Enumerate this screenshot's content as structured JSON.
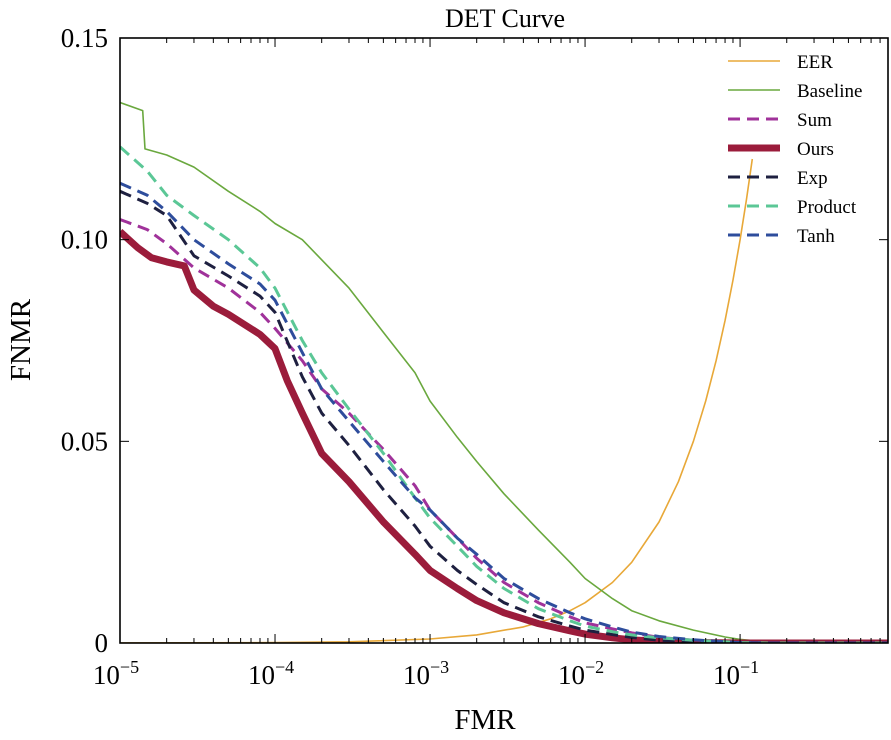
{
  "chart_data": {
    "type": "line",
    "title": "DET Curve",
    "xlabel": "FMR",
    "ylabel": "FNMR",
    "x_scale": "log",
    "xlim": [
      1e-05,
      0.9
    ],
    "ylim": [
      0,
      0.15
    ],
    "x_ticks": [
      {
        "value": 1e-05,
        "base": "10",
        "exp": "−5"
      },
      {
        "value": 0.0001,
        "base": "10",
        "exp": "−4"
      },
      {
        "value": 0.001,
        "base": "10",
        "exp": "−3"
      },
      {
        "value": 0.01,
        "base": "10",
        "exp": "−2"
      },
      {
        "value": 0.1,
        "base": "10",
        "exp": "−1"
      }
    ],
    "y_ticks": [
      {
        "value": 0,
        "label": "0"
      },
      {
        "value": 0.05,
        "label": "0.05"
      },
      {
        "value": 0.1,
        "label": "0.10"
      },
      {
        "value": 0.15,
        "label": "0.15"
      }
    ],
    "grid": false,
    "legend_position": "top-right",
    "series": [
      {
        "name": "EER",
        "color": "#e8a838",
        "style": "solid",
        "width": 1.6,
        "x": [
          1e-05,
          0.0001,
          0.0003,
          0.001,
          0.002,
          0.004,
          0.006,
          0.008,
          0.01,
          0.015,
          0.02,
          0.03,
          0.04,
          0.05,
          0.06,
          0.07,
          0.08,
          0.09,
          0.1,
          0.11,
          0.12
        ],
        "y": [
          1e-05,
          0.0001,
          0.0003,
          0.001,
          0.002,
          0.004,
          0.006,
          0.008,
          0.01,
          0.015,
          0.02,
          0.03,
          0.04,
          0.05,
          0.06,
          0.07,
          0.08,
          0.09,
          0.1,
          0.11,
          0.12
        ]
      },
      {
        "name": "Baseline",
        "color": "#6aa83e",
        "style": "solid",
        "width": 1.6,
        "x": [
          1e-05,
          1.4e-05,
          1.45e-05,
          2e-05,
          3e-05,
          5e-05,
          8e-05,
          0.0001,
          0.00015,
          0.0002,
          0.0003,
          0.0005,
          0.0008,
          0.001,
          0.0015,
          0.002,
          0.003,
          0.005,
          0.008,
          0.01,
          0.015,
          0.02,
          0.03,
          0.05,
          0.08,
          0.1,
          0.15,
          0.2,
          0.9
        ],
        "y": [
          0.134,
          0.132,
          0.1225,
          0.121,
          0.118,
          0.112,
          0.107,
          0.104,
          0.1,
          0.095,
          0.088,
          0.077,
          0.067,
          0.06,
          0.051,
          0.045,
          0.037,
          0.028,
          0.02,
          0.016,
          0.011,
          0.008,
          0.0055,
          0.0032,
          0.0015,
          0.0009,
          0.0003,
          0.0001,
          0.0
        ]
      },
      {
        "name": "Sum",
        "color": "#a0329a",
        "style": "dashed",
        "width": 3,
        "x": [
          1e-05,
          1.5e-05,
          2e-05,
          3e-05,
          5e-05,
          8e-05,
          0.0001,
          0.00015,
          0.0002,
          0.0003,
          0.0005,
          0.0008,
          0.001,
          0.0015,
          0.002,
          0.003,
          0.005,
          0.008,
          0.01,
          0.015,
          0.02,
          0.03,
          0.05,
          0.08,
          0.1,
          0.15,
          0.9
        ],
        "y": [
          0.105,
          0.1025,
          0.099,
          0.093,
          0.088,
          0.082,
          0.078,
          0.07,
          0.063,
          0.057,
          0.048,
          0.039,
          0.033,
          0.026,
          0.021,
          0.015,
          0.01,
          0.0065,
          0.005,
          0.0035,
          0.0025,
          0.0014,
          0.0007,
          0.0003,
          0.0001,
          0.0,
          0.0
        ]
      },
      {
        "name": "Ours",
        "color": "#9b1c3b",
        "style": "solid",
        "width": 7,
        "x": [
          1e-05,
          1.3e-05,
          1.6e-05,
          2e-05,
          2.6e-05,
          3e-05,
          4e-05,
          5e-05,
          8e-05,
          0.0001,
          0.00012,
          0.00015,
          0.0002,
          0.0003,
          0.0005,
          0.0008,
          0.001,
          0.0015,
          0.002,
          0.003,
          0.005,
          0.008,
          0.01,
          0.015,
          0.02,
          0.03,
          0.05,
          0.07,
          0.1,
          0.15,
          0.9
        ],
        "y": [
          0.102,
          0.098,
          0.0955,
          0.0945,
          0.0935,
          0.0875,
          0.0835,
          0.0815,
          0.0765,
          0.073,
          0.065,
          0.057,
          0.047,
          0.04,
          0.03,
          0.022,
          0.018,
          0.0135,
          0.0105,
          0.0075,
          0.0048,
          0.003,
          0.0022,
          0.0013,
          0.0008,
          0.0004,
          0.00015,
          5e-05,
          0.0,
          0.0,
          0.0
        ]
      },
      {
        "name": "Exp",
        "color": "#1e2040",
        "style": "dashed",
        "width": 3,
        "x": [
          1e-05,
          1.5e-05,
          2e-05,
          3e-05,
          5e-05,
          8e-05,
          0.0001,
          0.00015,
          0.0002,
          0.0003,
          0.0005,
          0.0008,
          0.001,
          0.0015,
          0.002,
          0.003,
          0.005,
          0.008,
          0.01,
          0.015,
          0.02,
          0.03,
          0.05,
          0.08,
          0.1,
          0.15,
          0.9
        ],
        "y": [
          0.112,
          0.109,
          0.106,
          0.096,
          0.091,
          0.086,
          0.082,
          0.066,
          0.057,
          0.049,
          0.038,
          0.029,
          0.024,
          0.018,
          0.0145,
          0.01,
          0.0065,
          0.0042,
          0.0032,
          0.0021,
          0.0014,
          0.0007,
          0.0003,
          0.0001,
          0.0,
          0.0,
          0.0
        ]
      },
      {
        "name": "Product",
        "color": "#5bc796",
        "style": "dashed",
        "width": 3,
        "x": [
          1e-05,
          1.5e-05,
          2e-05,
          3e-05,
          5e-05,
          8e-05,
          0.0001,
          0.00015,
          0.0002,
          0.0003,
          0.0005,
          0.0008,
          0.001,
          0.0015,
          0.002,
          0.003,
          0.005,
          0.008,
          0.01,
          0.015,
          0.02,
          0.03,
          0.05,
          0.08,
          0.1,
          0.15,
          0.9
        ],
        "y": [
          0.123,
          0.117,
          0.111,
          0.106,
          0.1,
          0.093,
          0.088,
          0.075,
          0.067,
          0.058,
          0.047,
          0.036,
          0.031,
          0.024,
          0.019,
          0.0135,
          0.0085,
          0.0055,
          0.0042,
          0.0028,
          0.002,
          0.0013,
          0.0007,
          0.0003,
          0.0001,
          0.0,
          0.0
        ]
      },
      {
        "name": "Tanh",
        "color": "#2e4d9c",
        "style": "dashed",
        "width": 3,
        "x": [
          1e-05,
          1.5e-05,
          2e-05,
          3e-05,
          5e-05,
          8e-05,
          0.0001,
          0.00015,
          0.0002,
          0.0003,
          0.0005,
          0.0008,
          0.001,
          0.0015,
          0.002,
          0.003,
          0.005,
          0.008,
          0.01,
          0.015,
          0.02,
          0.03,
          0.05,
          0.08,
          0.1,
          0.15,
          0.9
        ],
        "y": [
          0.114,
          0.111,
          0.107,
          0.1,
          0.094,
          0.089,
          0.085,
          0.072,
          0.063,
          0.055,
          0.045,
          0.036,
          0.033,
          0.026,
          0.022,
          0.016,
          0.011,
          0.0075,
          0.006,
          0.004,
          0.0027,
          0.0016,
          0.0008,
          0.0003,
          0.0001,
          0.0,
          0.0
        ]
      }
    ]
  }
}
